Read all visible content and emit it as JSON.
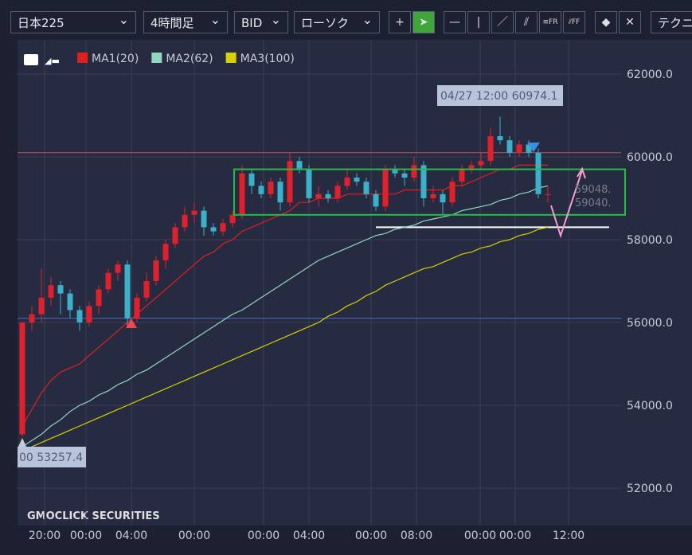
{
  "toolbar": {
    "symbol": "日本225",
    "timeframe": "4時間足",
    "price_type": "BID",
    "chart_style": "ローソク",
    "technical": "テクニ"
  },
  "chart_data": {
    "type": "candlestick",
    "legend": [
      {
        "name": "MA1(20)",
        "color": "#e0201c"
      },
      {
        "name": "MA2(62)",
        "color": "#8fd8c0"
      },
      {
        "name": "MA3(100)",
        "color": "#d8d000"
      }
    ],
    "ylim": [
      51500,
      63000
    ],
    "yticks": [
      {
        "value": 52000,
        "label": "52000.0"
      },
      {
        "value": 54000,
        "label": "54000.0"
      },
      {
        "value": 56000,
        "label": "56000.0"
      },
      {
        "value": 58000,
        "label": "58000.0"
      },
      {
        "value": 60000,
        "label": "60000.0"
      },
      {
        "value": 62000,
        "label": "62000.0"
      }
    ],
    "time_labels": [
      "20:00",
      "00:00",
      "04:00",
      "00:00",
      "00:00",
      "04:00",
      "00:00",
      "08:00",
      "00:00",
      "00:00",
      "12:00"
    ],
    "up_color": "#e0202a",
    "down_color": "#3bb0c9",
    "ohlc": [
      [
        53300,
        56000,
        53250,
        56000
      ],
      [
        56000,
        56400,
        55800,
        56200
      ],
      [
        56200,
        57300,
        56000,
        56600
      ],
      [
        56600,
        57100,
        56400,
        56900
      ],
      [
        56900,
        57000,
        56200,
        56700
      ],
      [
        56700,
        56800,
        56100,
        56300
      ],
      [
        56300,
        56400,
        55800,
        56000
      ],
      [
        56000,
        56500,
        55900,
        56400
      ],
      [
        56400,
        56900,
        56200,
        56800
      ],
      [
        56800,
        57300,
        56700,
        57200
      ],
      [
        57200,
        57500,
        57000,
        57400
      ],
      [
        57400,
        57500,
        55900,
        56100
      ],
      [
        56100,
        56700,
        56000,
        56600
      ],
      [
        56600,
        57200,
        56500,
        57000
      ],
      [
        57000,
        57600,
        56900,
        57500
      ],
      [
        57500,
        58000,
        57300,
        57900
      ],
      [
        57900,
        58400,
        57800,
        58300
      ],
      [
        58300,
        58800,
        58200,
        58600
      ],
      [
        58600,
        58900,
        58400,
        58700
      ],
      [
        58700,
        58800,
        58100,
        58300
      ],
      [
        58300,
        58400,
        58100,
        58200
      ],
      [
        58200,
        58500,
        58100,
        58400
      ],
      [
        58400,
        58700,
        58300,
        58600
      ],
      [
        58600,
        59800,
        58500,
        59600
      ],
      [
        59600,
        59700,
        59100,
        59300
      ],
      [
        59300,
        59400,
        59000,
        59100
      ],
      [
        59100,
        59500,
        59000,
        59400
      ],
      [
        59400,
        59500,
        58700,
        58900
      ],
      [
        58900,
        60100,
        58800,
        59900
      ],
      [
        59900,
        60000,
        59600,
        59700
      ],
      [
        59700,
        59800,
        58900,
        59000
      ],
      [
        59000,
        59300,
        58800,
        59100
      ],
      [
        59100,
        59200,
        58900,
        59000
      ],
      [
        59000,
        59400,
        58900,
        59300
      ],
      [
        59300,
        59700,
        59200,
        59500
      ],
      [
        59500,
        59600,
        59300,
        59400
      ],
      [
        59400,
        59500,
        59000,
        59100
      ],
      [
        59100,
        59200,
        58700,
        58800
      ],
      [
        58800,
        59800,
        58700,
        59700
      ],
      [
        59700,
        59800,
        59500,
        59600
      ],
      [
        59600,
        59700,
        59300,
        59500
      ],
      [
        59500,
        60000,
        59400,
        59800
      ],
      [
        59800,
        59900,
        58800,
        59000
      ],
      [
        59000,
        59300,
        58900,
        59100
      ],
      [
        59100,
        59200,
        58600,
        58900
      ],
      [
        58900,
        59500,
        58800,
        59400
      ],
      [
        59400,
        59800,
        59300,
        59700
      ],
      [
        59700,
        59900,
        59600,
        59800
      ],
      [
        59800,
        60100,
        59700,
        59900
      ],
      [
        59900,
        60700,
        59800,
        60500
      ],
      [
        60500,
        60974.1,
        60300,
        60400
      ],
      [
        60400,
        60500,
        60000,
        60100
      ],
      [
        60100,
        60400,
        60000,
        60300
      ],
      [
        60300,
        60400,
        60000,
        60100
      ],
      [
        60100,
        60200,
        59000,
        59100
      ],
      [
        59100,
        59300,
        58900,
        59100
      ]
    ],
    "series": [
      {
        "name": "MA1(20)",
        "color": "#e0201c",
        "values": [
          53500,
          53900,
          54300,
          54600,
          54800,
          54900,
          55000,
          55200,
          55400,
          55600,
          55800,
          56000,
          56200,
          56400,
          56600,
          56800,
          57000,
          57200,
          57400,
          57600,
          57700,
          57900,
          58000,
          58200,
          58300,
          58400,
          58500,
          58600,
          58700,
          58900,
          58900,
          59000,
          59000,
          59000,
          59100,
          59100,
          59100,
          59100,
          59100,
          59100,
          59200,
          59200,
          59200,
          59200,
          59200,
          59300,
          59300,
          59400,
          59500,
          59600,
          59700,
          59700,
          59800,
          59800,
          59800,
          59800
        ]
      },
      {
        "name": "MA2(62)",
        "color": "#8fd8c0",
        "values": [
          53000,
          53150,
          53300,
          53500,
          53650,
          53850,
          54000,
          54100,
          54250,
          54350,
          54500,
          54600,
          54750,
          54850,
          55000,
          55150,
          55300,
          55450,
          55600,
          55750,
          55900,
          56050,
          56200,
          56300,
          56450,
          56600,
          56750,
          56900,
          57050,
          57200,
          57350,
          57500,
          57600,
          57700,
          57800,
          57900,
          58000,
          58100,
          58150,
          58250,
          58300,
          58350,
          58450,
          58500,
          58550,
          58600,
          58700,
          58750,
          58800,
          58850,
          58950,
          59000,
          59100,
          59150,
          59250,
          59300
        ]
      },
      {
        "name": "MA3(100)",
        "color": "#d8d000",
        "values": [
          52900,
          53000,
          53100,
          53200,
          53300,
          53400,
          53500,
          53600,
          53700,
          53800,
          53900,
          54000,
          54100,
          54200,
          54300,
          54400,
          54500,
          54600,
          54700,
          54800,
          54900,
          55000,
          55100,
          55200,
          55300,
          55400,
          55500,
          55600,
          55700,
          55800,
          55900,
          56000,
          56150,
          56250,
          56400,
          56500,
          56650,
          56750,
          56900,
          57000,
          57100,
          57200,
          57300,
          57350,
          57450,
          57550,
          57650,
          57700,
          57800,
          57850,
          57950,
          58000,
          58100,
          58150,
          58250,
          58300
        ]
      }
    ],
    "horizontal_lines": [
      {
        "value": 60100,
        "color": "#c05060"
      },
      {
        "value": 56100,
        "color": "#4a70c0"
      },
      {
        "value": 58300,
        "color": "#ffffff"
      }
    ],
    "range_box": {
      "low": 58600,
      "high": 59700,
      "color": "#22c040"
    },
    "annotations": {
      "high_label": "04/27 12:00 60974.1",
      "low_label": "00 53257.4",
      "right_label_1": "59048.",
      "right_label_2": "59040."
    },
    "watermark": "GMOCLICK SECURITIES"
  }
}
